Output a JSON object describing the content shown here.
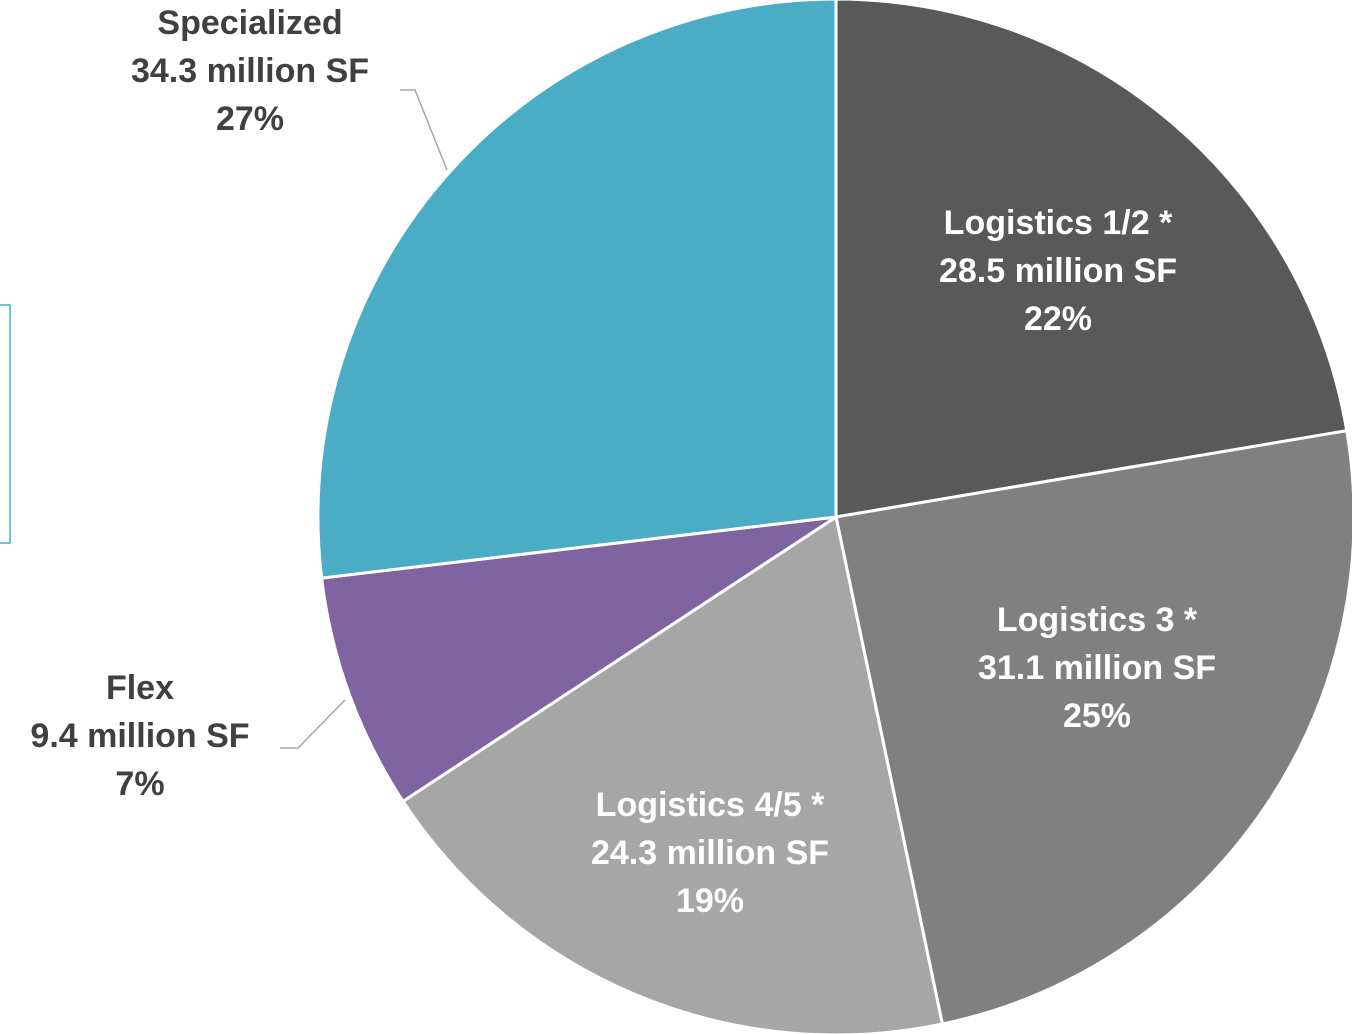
{
  "chart_data": {
    "type": "pie",
    "categories": [
      "Logistics 1/2 *",
      "Logistics 3 *",
      "Logistics 4/5 *",
      "Flex",
      "Specialized"
    ],
    "values": [
      28.5,
      31.1,
      24.3,
      9.4,
      34.3
    ],
    "value_labels": [
      "28.5 million SF",
      "31.1 million SF",
      "24.3 million SF",
      "9.4 million SF",
      "34.3 million SF"
    ],
    "percentages": [
      22,
      25,
      19,
      7,
      27
    ],
    "percentage_labels": [
      "22%",
      "25%",
      "19%",
      "7%",
      "27%"
    ],
    "colors": [
      "#595959",
      "#808080",
      "#a6a6a6",
      "#8064a2",
      "#4bacc6"
    ]
  }
}
